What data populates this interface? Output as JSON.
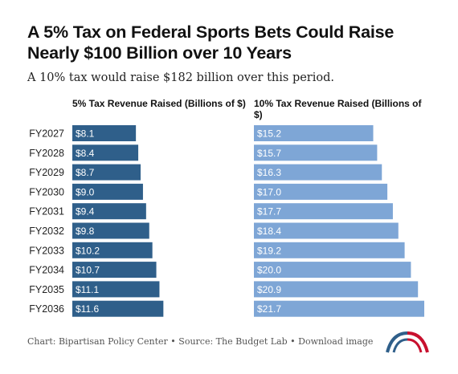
{
  "header": {
    "title": "A 5% Tax on Federal Sports Bets Could Raise Nearly $100 Billion over 10 Years",
    "subtitle": "A 10% tax would raise $182 billion over this period."
  },
  "chart_data": {
    "type": "bar",
    "orientation": "horizontal",
    "categories": [
      "FY2027",
      "FY2028",
      "FY2029",
      "FY2030",
      "FY2031",
      "FY2032",
      "FY2033",
      "FY2034",
      "FY2035",
      "FY2036"
    ],
    "series": [
      {
        "name": "5% Tax Revenue Raised (Billions of $)",
        "values": [
          8.1,
          8.4,
          8.7,
          9.0,
          9.4,
          9.8,
          10.2,
          10.7,
          11.1,
          11.6
        ],
        "labels": [
          "$8.1",
          "$8.4",
          "$8.7",
          "$9.0",
          "$9.4",
          "$9.8",
          "$10.2",
          "$10.7",
          "$11.1",
          "$11.6"
        ],
        "color": "#2f5f8a"
      },
      {
        "name": "10% Tax Revenue Raised (Billions of $)",
        "values": [
          15.2,
          15.7,
          16.3,
          17.0,
          17.7,
          18.4,
          19.2,
          20.0,
          20.9,
          21.7
        ],
        "labels": [
          "$15.2",
          "$15.7",
          "$16.3",
          "$17.0",
          "$17.7",
          "$18.4",
          "$19.2",
          "$20.0",
          "$20.9",
          "$21.7"
        ],
        "color": "#7ea6d6"
      }
    ]
  },
  "footer": {
    "chart_credit": "Chart: Bipartisan Policy Center",
    "separator": " • ",
    "source": "Source: The Budget Lab",
    "download": "Download image"
  },
  "logo": {
    "icon": "bipartisan-policy-center-arc-logo",
    "colors": [
      "#2f5f8a",
      "#c8102e"
    ]
  }
}
